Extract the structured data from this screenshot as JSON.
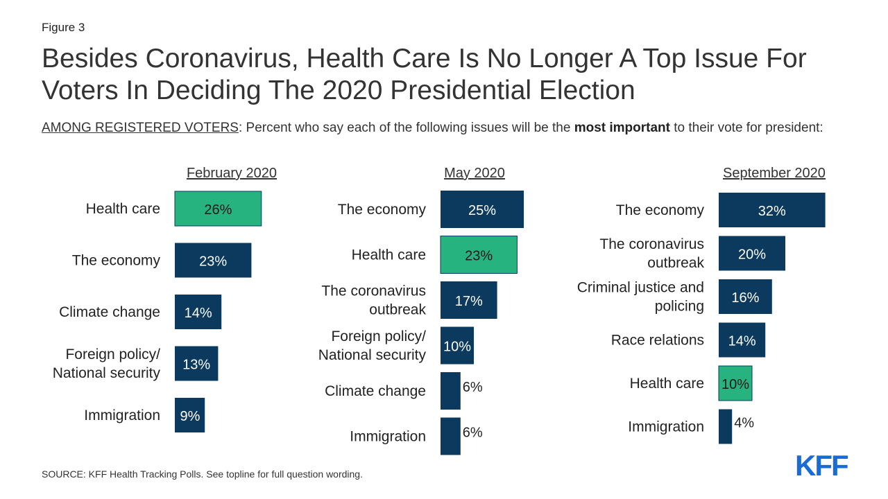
{
  "figure_label": "Figure 3",
  "title": "Besides Coronavirus, Health Care Is No Longer A Top Issue For Voters In Deciding The 2020 Presidential Election",
  "subtitle": {
    "underlined": "AMONG REGISTERED VOTERS",
    "text_before": ": Percent who say each of the following issues will be the ",
    "bold": "most important",
    "text_after": " to their vote for president:"
  },
  "source": "SOURCE: KFF Health Tracking Polls. See topline for full question wording.",
  "logo": "KFF",
  "colors": {
    "navy": "#0b3a5e",
    "green": "#26b37f",
    "text": "#222222"
  },
  "chart_data": [
    {
      "type": "bar",
      "orientation": "horizontal",
      "title": "February 2020",
      "categories": [
        "Health care",
        "The economy",
        "Climate change",
        "Foreign policy/ National security",
        "Immigration"
      ],
      "values": [
        26,
        23,
        14,
        13,
        9
      ],
      "labels": [
        "26%",
        "23%",
        "14%",
        "13%",
        "9%"
      ],
      "highlight": [
        true,
        false,
        false,
        false,
        false
      ]
    },
    {
      "type": "bar",
      "orientation": "horizontal",
      "title": "May 2020",
      "categories": [
        "The economy",
        "Health care",
        "The coronavirus outbreak",
        "Foreign policy/ National security",
        "Climate change",
        "Immigration"
      ],
      "values": [
        25,
        23,
        17,
        10,
        6,
        6
      ],
      "labels": [
        "25%",
        "23%",
        "17%",
        "10%",
        "6%",
        "6%"
      ],
      "highlight": [
        false,
        true,
        false,
        false,
        false,
        false
      ]
    },
    {
      "type": "bar",
      "orientation": "horizontal",
      "title": "September 2020",
      "categories": [
        "The economy",
        "The coronavirus outbreak",
        "Criminal justice and policing",
        "Race relations",
        "Health care",
        "Immigration"
      ],
      "values": [
        32,
        20,
        16,
        14,
        10,
        4
      ],
      "labels": [
        "32%",
        "20%",
        "16%",
        "14%",
        "10%",
        "4%"
      ],
      "highlight": [
        false,
        false,
        false,
        false,
        true,
        false
      ]
    }
  ]
}
